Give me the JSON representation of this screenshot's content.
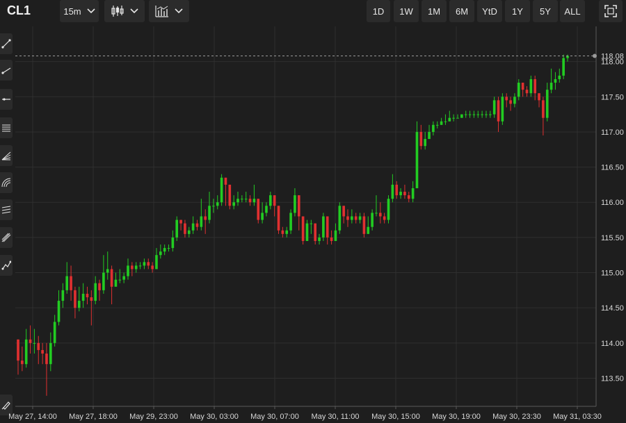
{
  "toolbar": {
    "symbol": "CL1",
    "interval": "15m",
    "chart_style_icon": "candlestick-icon",
    "indicators_icon": "indicators-icon",
    "ranges": [
      "1D",
      "1W",
      "1M",
      "6M",
      "YtD",
      "1Y",
      "5Y",
      "ALL"
    ],
    "fullscreen_icon": "fullscreen-icon"
  },
  "drawing_tools": [
    "trend-line-icon",
    "ray-icon",
    "horizontal-line-icon",
    "fib-retracement-icon",
    "fib-fan-icon",
    "fib-arcs-icon",
    "parallel-channel-icon",
    "pitchfork-icon",
    "path-icon",
    "brush-icon"
  ],
  "colors": {
    "background": "#1e1e1e",
    "up": "#22cc22",
    "down": "#e03030",
    "grid": "#2f2f2f",
    "axis": "#5a5a5a",
    "price_line": "#9a9a9a"
  },
  "chart_data": {
    "type": "candlestick",
    "interval": "15m",
    "ylim": [
      113.1,
      118.5
    ],
    "yticks": [
      "113.50",
      "114.00",
      "114.50",
      "115.00",
      "115.50",
      "116.00",
      "116.50",
      "117.00",
      "117.50",
      "118.00"
    ],
    "xticks": [
      "May 27, 14:00",
      "May 27, 18:00",
      "May 29, 23:00",
      "May 30, 03:00",
      "May 30, 07:00",
      "May 30, 11:00",
      "May 30, 15:00",
      "May 30, 19:00",
      "May 30, 23:30",
      "May 31, 03:30"
    ],
    "last_price_label": "118.08",
    "grid": true,
    "legend": "none",
    "candles": [
      [
        114.05,
        113.75,
        114.05,
        113.55
      ],
      [
        113.75,
        113.7,
        113.95,
        113.6
      ],
      [
        113.7,
        114.05,
        114.2,
        113.65
      ],
      [
        114.05,
        114.0,
        114.25,
        113.85
      ],
      [
        114.0,
        114.0,
        114.2,
        113.85
      ],
      [
        114.0,
        113.9,
        114.1,
        113.7
      ],
      [
        113.9,
        113.85,
        114.0,
        113.7
      ],
      [
        113.85,
        113.7,
        114.0,
        113.25
      ],
      [
        113.7,
        114.0,
        114.15,
        113.6
      ],
      [
        114.0,
        114.3,
        114.4,
        113.95
      ],
      [
        114.3,
        114.6,
        114.75,
        114.25
      ],
      [
        114.6,
        114.75,
        114.85,
        114.5
      ],
      [
        114.75,
        114.95,
        115.15,
        114.7
      ],
      [
        114.95,
        114.75,
        115.1,
        114.6
      ],
      [
        114.75,
        114.5,
        114.8,
        114.35
      ],
      [
        114.5,
        114.6,
        114.8,
        114.45
      ],
      [
        114.6,
        114.7,
        114.85,
        114.5
      ],
      [
        114.7,
        114.65,
        114.8,
        114.55
      ],
      [
        114.65,
        114.6,
        114.75,
        114.25
      ],
      [
        114.6,
        114.85,
        114.95,
        114.55
      ],
      [
        114.85,
        114.75,
        114.9,
        114.6
      ],
      [
        114.75,
        115.0,
        115.25,
        114.7
      ],
      [
        115.0,
        115.05,
        115.3,
        114.9
      ],
      [
        115.05,
        114.8,
        115.1,
        114.55
      ],
      [
        114.8,
        114.9,
        115.0,
        114.85
      ],
      [
        114.9,
        114.9,
        115.05,
        114.85
      ],
      [
        114.9,
        114.95,
        115.0,
        114.85
      ],
      [
        114.95,
        115.1,
        115.2,
        114.9
      ],
      [
        115.1,
        115.05,
        115.15,
        114.95
      ],
      [
        115.05,
        115.1,
        115.15,
        115.0
      ],
      [
        115.1,
        115.1,
        115.15,
        115.05
      ],
      [
        115.1,
        115.15,
        115.2,
        115.05
      ],
      [
        115.15,
        115.1,
        115.2,
        115.05
      ],
      [
        115.1,
        115.05,
        115.15,
        115.0
      ],
      [
        115.05,
        115.25,
        115.35,
        115.05
      ],
      [
        115.25,
        115.3,
        115.4,
        115.2
      ],
      [
        115.3,
        115.35,
        115.4,
        115.25
      ],
      [
        115.35,
        115.35,
        115.4,
        115.3
      ],
      [
        115.35,
        115.5,
        115.6,
        115.3
      ],
      [
        115.5,
        115.75,
        115.8,
        115.45
      ],
      [
        115.75,
        115.7,
        115.75,
        115.6
      ],
      [
        115.7,
        115.55,
        115.75,
        115.5
      ],
      [
        115.55,
        115.6,
        115.65,
        115.5
      ],
      [
        115.6,
        115.7,
        115.8,
        115.55
      ],
      [
        115.7,
        115.65,
        115.75,
        115.6
      ],
      [
        115.65,
        115.8,
        116.05,
        115.6
      ],
      [
        115.8,
        115.75,
        115.9,
        115.55
      ],
      [
        115.75,
        115.95,
        116.15,
        115.7
      ],
      [
        115.95,
        115.95,
        116.05,
        115.85
      ],
      [
        115.95,
        116.0,
        116.1,
        115.9
      ],
      [
        116.0,
        116.35,
        116.4,
        115.95
      ],
      [
        116.35,
        116.25,
        116.35,
        115.95
      ],
      [
        116.25,
        115.95,
        116.25,
        115.9
      ],
      [
        115.95,
        116.0,
        116.1,
        115.9
      ],
      [
        116.0,
        116.05,
        116.15,
        115.95
      ],
      [
        116.05,
        116.05,
        116.1,
        116.0
      ],
      [
        116.05,
        116.05,
        116.15,
        116.0
      ],
      [
        116.05,
        116.0,
        116.1,
        115.95
      ],
      [
        116.0,
        116.05,
        116.25,
        115.95
      ],
      [
        116.05,
        115.75,
        116.05,
        115.7
      ],
      [
        115.75,
        115.85,
        116.0,
        115.7
      ],
      [
        115.85,
        115.95,
        116.0,
        115.8
      ],
      [
        115.95,
        116.1,
        116.15,
        115.9
      ],
      [
        116.1,
        115.95,
        116.1,
        115.8
      ],
      [
        115.95,
        115.6,
        115.95,
        115.55
      ],
      [
        115.6,
        115.55,
        115.65,
        115.5
      ],
      [
        115.55,
        115.6,
        115.65,
        115.5
      ],
      [
        115.6,
        115.85,
        115.9,
        115.55
      ],
      [
        115.85,
        116.1,
        116.2,
        115.8
      ],
      [
        116.1,
        115.8,
        116.1,
        115.6
      ],
      [
        115.8,
        115.45,
        115.8,
        115.4
      ],
      [
        115.45,
        115.7,
        115.75,
        115.45
      ],
      [
        115.7,
        115.7,
        115.75,
        115.55
      ],
      [
        115.7,
        115.45,
        115.7,
        115.4
      ],
      [
        115.45,
        115.5,
        115.55,
        115.4
      ],
      [
        115.5,
        115.8,
        115.85,
        115.45
      ],
      [
        115.8,
        115.5,
        115.8,
        115.4
      ],
      [
        115.5,
        115.45,
        115.6,
        115.4
      ],
      [
        115.45,
        115.6,
        115.7,
        115.45
      ],
      [
        115.6,
        115.95,
        116.0,
        115.55
      ],
      [
        115.95,
        115.8,
        115.95,
        115.7
      ],
      [
        115.8,
        115.75,
        115.9,
        115.65
      ],
      [
        115.75,
        115.8,
        115.9,
        115.7
      ],
      [
        115.8,
        115.75,
        115.85,
        115.7
      ],
      [
        115.75,
        115.8,
        115.85,
        115.7
      ],
      [
        115.8,
        115.55,
        115.85,
        115.5
      ],
      [
        115.55,
        115.65,
        115.8,
        115.55
      ],
      [
        115.65,
        115.85,
        115.9,
        115.6
      ],
      [
        115.85,
        115.85,
        116.1,
        115.8
      ],
      [
        115.85,
        115.8,
        116.0,
        115.7
      ],
      [
        115.8,
        115.75,
        115.85,
        115.7
      ],
      [
        115.75,
        116.05,
        116.1,
        115.7
      ],
      [
        116.05,
        116.25,
        116.4,
        116.0
      ],
      [
        116.25,
        116.1,
        116.3,
        116.05
      ],
      [
        116.1,
        116.15,
        116.2,
        116.05
      ],
      [
        116.15,
        116.1,
        116.25,
        116.05
      ],
      [
        116.1,
        116.05,
        116.15,
        116.0
      ],
      [
        116.05,
        116.2,
        116.3,
        116.0
      ],
      [
        116.2,
        117.0,
        117.15,
        116.2
      ],
      [
        117.0,
        116.8,
        117.1,
        116.75
      ],
      [
        116.8,
        116.9,
        117.0,
        116.75
      ],
      [
        116.9,
        117.0,
        117.1,
        116.9
      ],
      [
        117.0,
        117.1,
        117.15,
        116.95
      ],
      [
        117.1,
        117.1,
        117.15,
        117.05
      ],
      [
        117.1,
        117.15,
        117.2,
        117.1
      ],
      [
        117.15,
        117.15,
        117.25,
        117.1
      ],
      [
        117.15,
        117.2,
        117.3,
        117.15
      ],
      [
        117.2,
        117.2,
        117.25,
        117.15
      ],
      [
        117.2,
        117.2,
        117.25,
        117.2
      ],
      [
        117.2,
        117.25,
        117.25,
        117.2
      ],
      [
        117.25,
        117.25,
        117.3,
        117.2
      ],
      [
        117.25,
        117.25,
        117.3,
        117.2
      ],
      [
        117.25,
        117.25,
        117.3,
        117.2
      ],
      [
        117.25,
        117.25,
        117.3,
        117.2
      ],
      [
        117.25,
        117.25,
        117.3,
        117.2
      ],
      [
        117.25,
        117.25,
        117.3,
        117.2
      ],
      [
        117.25,
        117.25,
        117.3,
        117.2
      ],
      [
        117.25,
        117.45,
        117.5,
        117.2
      ],
      [
        117.45,
        117.15,
        117.5,
        117.0
      ],
      [
        117.15,
        117.5,
        117.55,
        117.1
      ],
      [
        117.5,
        117.45,
        117.55,
        117.35
      ],
      [
        117.45,
        117.4,
        117.5,
        117.3
      ],
      [
        117.4,
        117.5,
        117.55,
        117.35
      ],
      [
        117.5,
        117.7,
        117.75,
        117.45
      ],
      [
        117.7,
        117.6,
        117.7,
        117.5
      ],
      [
        117.6,
        117.55,
        117.65,
        117.5
      ],
      [
        117.55,
        117.75,
        117.8,
        117.5
      ],
      [
        117.75,
        117.55,
        117.8,
        117.45
      ],
      [
        117.55,
        117.45,
        117.55,
        117.35
      ],
      [
        117.45,
        117.2,
        117.5,
        116.95
      ],
      [
        117.2,
        117.6,
        117.7,
        117.15
      ],
      [
        117.6,
        117.7,
        117.9,
        117.55
      ],
      [
        117.7,
        117.75,
        117.85,
        117.6
      ],
      [
        117.75,
        117.8,
        117.9,
        117.7
      ],
      [
        117.8,
        118.05,
        118.1,
        117.75
      ],
      [
        118.05,
        118.08,
        118.1,
        118.0
      ]
    ]
  }
}
